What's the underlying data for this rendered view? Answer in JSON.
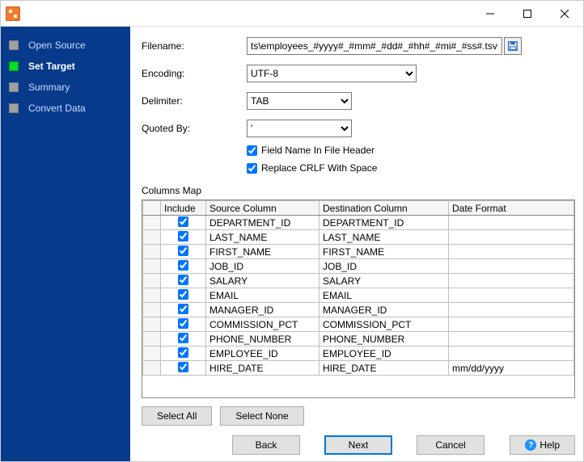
{
  "sidebar": {
    "items": [
      {
        "label": "Open Source",
        "active": false,
        "bold": false
      },
      {
        "label": "Set Target",
        "active": true,
        "bold": true
      },
      {
        "label": "Summary",
        "active": false,
        "bold": false
      },
      {
        "label": "Convert Data",
        "active": false,
        "bold": false
      }
    ]
  },
  "form": {
    "filename_label": "Filename:",
    "filename_value": "ts\\employees_#yyyy#_#mm#_#dd#_#hh#_#mi#_#ss#.tsv",
    "encoding_label": "Encoding:",
    "encoding_value": "UTF-8",
    "delimiter_label": "Delimiter:",
    "delimiter_value": "TAB",
    "quoted_label": "Quoted By:",
    "quoted_value": "'",
    "fieldname_label": "Field Name In File Header",
    "fieldname_checked": true,
    "crlf_label": "Replace CRLF With Space",
    "crlf_checked": true
  },
  "columns_map": {
    "title": "Columns Map",
    "headers": {
      "include": "Include",
      "source": "Source Column",
      "destination": "Destination Column",
      "dateformat": "Date Format"
    },
    "rows": [
      {
        "include": true,
        "source": "DEPARTMENT_ID",
        "destination": "DEPARTMENT_ID",
        "dateformat": "",
        "selected": true
      },
      {
        "include": true,
        "source": "LAST_NAME",
        "destination": "LAST_NAME",
        "dateformat": ""
      },
      {
        "include": true,
        "source": "FIRST_NAME",
        "destination": "FIRST_NAME",
        "dateformat": ""
      },
      {
        "include": true,
        "source": "JOB_ID",
        "destination": "JOB_ID",
        "dateformat": ""
      },
      {
        "include": true,
        "source": "SALARY",
        "destination": "SALARY",
        "dateformat": ""
      },
      {
        "include": true,
        "source": "EMAIL",
        "destination": "EMAIL",
        "dateformat": ""
      },
      {
        "include": true,
        "source": "MANAGER_ID",
        "destination": "MANAGER_ID",
        "dateformat": ""
      },
      {
        "include": true,
        "source": "COMMISSION_PCT",
        "destination": "COMMISSION_PCT",
        "dateformat": ""
      },
      {
        "include": true,
        "source": "PHONE_NUMBER",
        "destination": "PHONE_NUMBER",
        "dateformat": ""
      },
      {
        "include": true,
        "source": "EMPLOYEE_ID",
        "destination": "EMPLOYEE_ID",
        "dateformat": ""
      },
      {
        "include": true,
        "source": "HIRE_DATE",
        "destination": "HIRE_DATE",
        "dateformat": "mm/dd/yyyy"
      }
    ]
  },
  "buttons": {
    "select_all": "Select All",
    "select_none": "Select None",
    "back": "Back",
    "next": "Next",
    "cancel": "Cancel",
    "help": "Help"
  },
  "colors": {
    "sidebar_bg": "#083a8c",
    "accent": "#0078d7",
    "active_step": "#00e020"
  }
}
